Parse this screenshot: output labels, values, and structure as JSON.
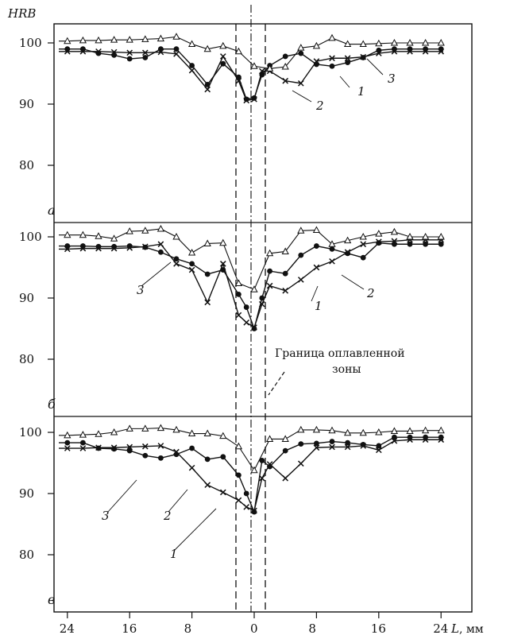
{
  "figure": {
    "y_axis_title": "HRB",
    "x_axis_title": "L",
    "x_axis_unit": ", мм",
    "x_tick_labels": [
      "24",
      "16",
      "8",
      "0",
      "8",
      "16",
      "24"
    ],
    "y_tick_labels": [
      "100",
      "90",
      "80"
    ],
    "annotation": [
      "Граница оплавленной",
      "зоны"
    ]
  },
  "chart_data": [
    {
      "type": "line",
      "panel_label": "а",
      "xlabel": "L, мм",
      "ylabel": "HRB",
      "xlim": [
        -26,
        26
      ],
      "ylim": [
        71,
        102.5
      ],
      "x_axis_note": "distance from joint centre line; negative = left side (labels show absolute values)",
      "series": [
        {
          "name": "1",
          "marker": "circle",
          "x": [
            -24,
            -22,
            -20,
            -18,
            -16,
            -14,
            -12,
            -10,
            -8,
            -6,
            -4,
            -2,
            -1,
            0,
            1,
            2,
            4,
            6,
            8,
            10,
            12,
            14,
            16,
            18,
            20,
            22,
            24
          ],
          "y": [
            99.0,
            99.0,
            98.3,
            98.0,
            97.4,
            97.6,
            99.0,
            99.0,
            96.3,
            93.2,
            96.6,
            94.4,
            90.8,
            91.0,
            94.8,
            96.3,
            97.8,
            98.3,
            96.5,
            96.2,
            96.8,
            97.6,
            98.8,
            99.0,
            99.0,
            99.0,
            99.0
          ]
        },
        {
          "name": "2",
          "marker": "cross",
          "x": [
            -24,
            -22,
            -20,
            -18,
            -16,
            -14,
            -12,
            -10,
            -8,
            -6,
            -4,
            -2,
            -1,
            0,
            1,
            2,
            4,
            6,
            8,
            10,
            12,
            14,
            16,
            18,
            20,
            22,
            24
          ],
          "y": [
            98.6,
            98.6,
            98.6,
            98.5,
            98.4,
            98.4,
            98.5,
            98.2,
            95.5,
            92.4,
            97.8,
            93.8,
            90.6,
            90.8,
            95.4,
            95.4,
            93.8,
            93.4,
            97.0,
            97.5,
            97.5,
            97.7,
            98.3,
            98.6,
            98.6,
            98.6,
            98.6
          ]
        },
        {
          "name": "3",
          "marker": "triangle",
          "x": [
            -24,
            -22,
            -20,
            -18,
            -16,
            -14,
            -12,
            -10,
            -8,
            -6,
            -4,
            -2,
            0,
            2,
            4,
            6,
            8,
            10,
            12,
            14,
            16,
            18,
            20,
            22,
            24
          ],
          "y": [
            100.3,
            100.4,
            100.4,
            100.5,
            100.5,
            100.6,
            100.7,
            101.0,
            99.8,
            99.0,
            99.5,
            98.6,
            96.2,
            95.8,
            96.1,
            99.2,
            99.5,
            100.8,
            99.8,
            99.8,
            99.9,
            100.0,
            100.0,
            100.0,
            100.0
          ]
        }
      ]
    },
    {
      "type": "line",
      "panel_label": "б",
      "xlabel": "L, мм",
      "ylabel": "HRB",
      "xlim": [
        -26,
        26
      ],
      "ylim": [
        71,
        102.5
      ],
      "series": [
        {
          "name": "1",
          "marker": "circle",
          "x": [
            -24,
            -22,
            -20,
            -18,
            -16,
            -14,
            -12,
            -10,
            -8,
            -6,
            -4,
            -2,
            -1,
            0,
            1,
            2,
            4,
            6,
            8,
            10,
            12,
            14,
            16,
            18,
            20,
            22,
            24
          ],
          "y": [
            98.5,
            98.5,
            98.4,
            98.4,
            98.5,
            98.3,
            97.5,
            96.4,
            95.6,
            93.9,
            94.6,
            90.6,
            88.5,
            85.0,
            90.0,
            94.4,
            94.0,
            97.0,
            98.5,
            98.0,
            97.3,
            96.6,
            99.0,
            98.8,
            98.8,
            98.8,
            98.8
          ]
        },
        {
          "name": "2",
          "marker": "cross",
          "x": [
            -24,
            -22,
            -20,
            -18,
            -16,
            -14,
            -12,
            -10,
            -8,
            -6,
            -4,
            -2,
            -1,
            0,
            1,
            2,
            4,
            6,
            8,
            10,
            12,
            14,
            16,
            18,
            20,
            22,
            24
          ],
          "y": [
            98.0,
            98.1,
            98.1,
            98.1,
            98.2,
            98.4,
            98.8,
            95.6,
            94.6,
            89.3,
            95.6,
            87.2,
            86.0,
            85.2,
            89.0,
            92.0,
            91.2,
            93.0,
            95.0,
            96.0,
            97.5,
            98.8,
            99.2,
            99.3,
            99.5,
            99.5,
            99.5
          ]
        },
        {
          "name": "3",
          "marker": "triangle",
          "x": [
            -24,
            -22,
            -20,
            -18,
            -16,
            -14,
            -12,
            -10,
            -8,
            -6,
            -4,
            -2,
            0,
            2,
            4,
            6,
            8,
            10,
            12,
            14,
            16,
            18,
            20,
            22,
            24
          ],
          "y": [
            100.3,
            100.3,
            100.1,
            99.7,
            100.9,
            101.0,
            101.3,
            100.0,
            97.4,
            98.9,
            99.0,
            92.4,
            91.4,
            97.3,
            97.6,
            101.0,
            101.1,
            98.8,
            99.4,
            100.0,
            100.5,
            100.8,
            100.0,
            100.0,
            100.0
          ]
        }
      ]
    },
    {
      "type": "line",
      "panel_label": "в",
      "xlabel": "L, мм",
      "ylabel": "HRB",
      "xlim": [
        -26,
        26
      ],
      "ylim": [
        71,
        102.5
      ],
      "series": [
        {
          "name": "1",
          "marker": "cross",
          "x": [
            -24,
            -22,
            -20,
            -18,
            -16,
            -14,
            -12,
            -10,
            -8,
            -6,
            -4,
            -2,
            -1,
            0,
            1,
            2,
            4,
            6,
            8,
            10,
            12,
            14,
            16,
            18,
            20,
            22,
            24
          ],
          "y": [
            97.4,
            97.4,
            97.5,
            97.5,
            97.6,
            97.7,
            97.8,
            96.8,
            94.2,
            91.4,
            90.2,
            88.9,
            87.8,
            87.2,
            92.5,
            94.8,
            92.5,
            94.9,
            97.5,
            97.6,
            97.6,
            97.8,
            97.1,
            98.6,
            98.8,
            98.8,
            98.8
          ]
        },
        {
          "name": "2",
          "marker": "circle",
          "x": [
            -24,
            -22,
            -20,
            -18,
            -16,
            -14,
            -12,
            -10,
            -8,
            -6,
            -4,
            -2,
            -1,
            0,
            1,
            2,
            4,
            6,
            8,
            10,
            12,
            14,
            16,
            18,
            20,
            22,
            24
          ],
          "y": [
            98.3,
            98.3,
            97.4,
            97.3,
            97.0,
            96.2,
            95.8,
            96.4,
            97.4,
            95.6,
            96.0,
            93.0,
            90.0,
            87.0,
            95.4,
            94.4,
            97.0,
            98.1,
            98.2,
            98.5,
            98.3,
            98.0,
            97.8,
            99.2,
            99.2,
            99.2,
            99.2
          ]
        },
        {
          "name": "3",
          "marker": "triangle",
          "x": [
            -24,
            -22,
            -20,
            -18,
            -16,
            -14,
            -12,
            -10,
            -8,
            -6,
            -4,
            -2,
            0,
            2,
            4,
            6,
            8,
            10,
            12,
            14,
            16,
            18,
            20,
            22,
            24
          ],
          "y": [
            99.5,
            99.6,
            99.7,
            100.0,
            100.6,
            100.6,
            100.7,
            100.4,
            99.8,
            99.8,
            99.4,
            97.7,
            93.8,
            98.9,
            98.9,
            100.4,
            100.4,
            100.3,
            99.9,
            99.9,
            100.0,
            100.2,
            100.2,
            100.3,
            100.3
          ]
        }
      ]
    }
  ]
}
